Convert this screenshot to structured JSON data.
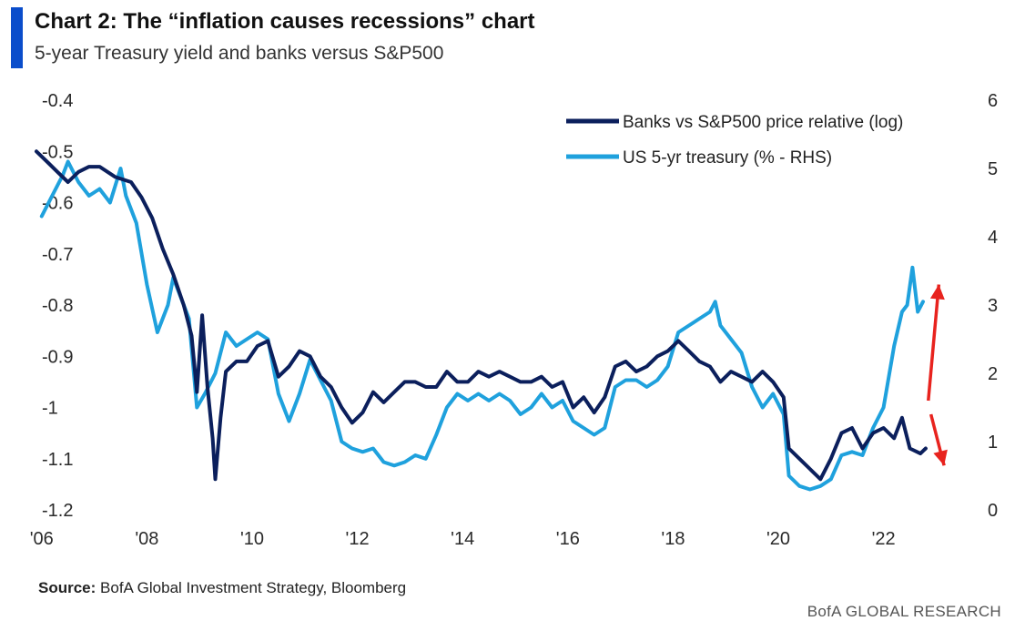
{
  "header": {
    "title": "Chart 2: The “inflation causes recessions” chart",
    "subtitle": "5-year Treasury yield and banks versus S&P500"
  },
  "footer": {
    "source_label": "Source:",
    "source_text": "BofA Global Investment Strategy, Bloomberg",
    "brand": "BofA GLOBAL RESEARCH"
  },
  "colors": {
    "banks": "#0b1f5c",
    "treasury": "#1fa1dd",
    "arrow": "#e8231e",
    "title_bar": "#0a4dcb"
  },
  "chart_data": {
    "type": "line",
    "title": "Chart 2: The “inflation causes recessions” chart",
    "subtitle": "5-year Treasury yield and banks versus S&P500",
    "x_range": [
      2005.9,
      2023.2
    ],
    "x_ticks": [
      {
        "value": 2006,
        "label": "'06"
      },
      {
        "value": 2008,
        "label": "'08"
      },
      {
        "value": 2010,
        "label": "'10"
      },
      {
        "value": 2012,
        "label": "'12"
      },
      {
        "value": 2014,
        "label": "'14"
      },
      {
        "value": 2016,
        "label": "'16"
      },
      {
        "value": 2018,
        "label": "'18"
      },
      {
        "value": 2020,
        "label": "'20"
      },
      {
        "value": 2022,
        "label": "'22"
      }
    ],
    "y_left": {
      "min": -1.2,
      "max": -0.4,
      "ticks": [
        "-0.4",
        "-0.5",
        "-0.6",
        "-0.7",
        "-0.8",
        "-0.9",
        "-1",
        "-1.1",
        "-1.2"
      ]
    },
    "y_right": {
      "min": 0,
      "max": 6,
      "ticks": [
        "6",
        "5",
        "4",
        "3",
        "2",
        "1",
        "0"
      ]
    },
    "grid": false,
    "legend_position": "top-right",
    "series": [
      {
        "name": "Banks vs S&P500 price relative (log)",
        "axis": "left",
        "points": [
          [
            2005.9,
            -0.5
          ],
          [
            2006.1,
            -0.52
          ],
          [
            2006.3,
            -0.54
          ],
          [
            2006.5,
            -0.56
          ],
          [
            2006.7,
            -0.54
          ],
          [
            2006.9,
            -0.53
          ],
          [
            2007.1,
            -0.53
          ],
          [
            2007.4,
            -0.55
          ],
          [
            2007.7,
            -0.56
          ],
          [
            2007.9,
            -0.59
          ],
          [
            2008.1,
            -0.63
          ],
          [
            2008.3,
            -0.69
          ],
          [
            2008.5,
            -0.74
          ],
          [
            2008.7,
            -0.8
          ],
          [
            2008.85,
            -0.86
          ],
          [
            2008.95,
            -0.97
          ],
          [
            2009.05,
            -0.82
          ],
          [
            2009.15,
            -0.96
          ],
          [
            2009.25,
            -1.06
          ],
          [
            2009.3,
            -1.14
          ],
          [
            2009.4,
            -1.02
          ],
          [
            2009.5,
            -0.93
          ],
          [
            2009.7,
            -0.91
          ],
          [
            2009.9,
            -0.91
          ],
          [
            2010.1,
            -0.88
          ],
          [
            2010.3,
            -0.87
          ],
          [
            2010.5,
            -0.94
          ],
          [
            2010.7,
            -0.92
          ],
          [
            2010.9,
            -0.89
          ],
          [
            2011.1,
            -0.9
          ],
          [
            2011.3,
            -0.94
          ],
          [
            2011.5,
            -0.96
          ],
          [
            2011.7,
            -1.0
          ],
          [
            2011.9,
            -1.03
          ],
          [
            2012.1,
            -1.01
          ],
          [
            2012.3,
            -0.97
          ],
          [
            2012.5,
            -0.99
          ],
          [
            2012.7,
            -0.97
          ],
          [
            2012.9,
            -0.95
          ],
          [
            2013.1,
            -0.95
          ],
          [
            2013.3,
            -0.96
          ],
          [
            2013.5,
            -0.96
          ],
          [
            2013.7,
            -0.93
          ],
          [
            2013.9,
            -0.95
          ],
          [
            2014.1,
            -0.95
          ],
          [
            2014.3,
            -0.93
          ],
          [
            2014.5,
            -0.94
          ],
          [
            2014.7,
            -0.93
          ],
          [
            2014.9,
            -0.94
          ],
          [
            2015.1,
            -0.95
          ],
          [
            2015.3,
            -0.95
          ],
          [
            2015.5,
            -0.94
          ],
          [
            2015.7,
            -0.96
          ],
          [
            2015.9,
            -0.95
          ],
          [
            2016.1,
            -1.0
          ],
          [
            2016.3,
            -0.98
          ],
          [
            2016.5,
            -1.01
          ],
          [
            2016.7,
            -0.98
          ],
          [
            2016.9,
            -0.92
          ],
          [
            2017.1,
            -0.91
          ],
          [
            2017.3,
            -0.93
          ],
          [
            2017.5,
            -0.92
          ],
          [
            2017.7,
            -0.9
          ],
          [
            2017.9,
            -0.89
          ],
          [
            2018.1,
            -0.87
          ],
          [
            2018.3,
            -0.89
          ],
          [
            2018.5,
            -0.91
          ],
          [
            2018.7,
            -0.92
          ],
          [
            2018.9,
            -0.95
          ],
          [
            2019.1,
            -0.93
          ],
          [
            2019.3,
            -0.94
          ],
          [
            2019.5,
            -0.95
          ],
          [
            2019.7,
            -0.93
          ],
          [
            2019.9,
            -0.95
          ],
          [
            2020.1,
            -0.98
          ],
          [
            2020.2,
            -1.08
          ],
          [
            2020.4,
            -1.1
          ],
          [
            2020.6,
            -1.12
          ],
          [
            2020.8,
            -1.14
          ],
          [
            2021.0,
            -1.1
          ],
          [
            2021.2,
            -1.05
          ],
          [
            2021.4,
            -1.04
          ],
          [
            2021.6,
            -1.08
          ],
          [
            2021.8,
            -1.05
          ],
          [
            2022.0,
            -1.04
          ],
          [
            2022.2,
            -1.06
          ],
          [
            2022.35,
            -1.02
          ],
          [
            2022.5,
            -1.08
          ],
          [
            2022.7,
            -1.09
          ],
          [
            2022.8,
            -1.08
          ]
        ]
      },
      {
        "name": "US 5-yr treasury (% - RHS)",
        "axis": "right",
        "points": [
          [
            2006.0,
            4.3
          ],
          [
            2006.2,
            4.6
          ],
          [
            2006.4,
            4.9
          ],
          [
            2006.5,
            5.1
          ],
          [
            2006.7,
            4.8
          ],
          [
            2006.9,
            4.6
          ],
          [
            2007.1,
            4.7
          ],
          [
            2007.3,
            4.5
          ],
          [
            2007.5,
            5.0
          ],
          [
            2007.6,
            4.6
          ],
          [
            2007.8,
            4.2
          ],
          [
            2008.0,
            3.3
          ],
          [
            2008.2,
            2.6
          ],
          [
            2008.4,
            3.0
          ],
          [
            2008.5,
            3.4
          ],
          [
            2008.6,
            3.2
          ],
          [
            2008.8,
            2.8
          ],
          [
            2008.95,
            1.5
          ],
          [
            2009.1,
            1.7
          ],
          [
            2009.3,
            2.0
          ],
          [
            2009.5,
            2.6
          ],
          [
            2009.7,
            2.4
          ],
          [
            2009.9,
            2.5
          ],
          [
            2010.1,
            2.6
          ],
          [
            2010.3,
            2.5
          ],
          [
            2010.5,
            1.7
          ],
          [
            2010.7,
            1.3
          ],
          [
            2010.9,
            1.7
          ],
          [
            2011.1,
            2.2
          ],
          [
            2011.3,
            1.9
          ],
          [
            2011.5,
            1.6
          ],
          [
            2011.7,
            1.0
          ],
          [
            2011.9,
            0.9
          ],
          [
            2012.1,
            0.85
          ],
          [
            2012.3,
            0.9
          ],
          [
            2012.5,
            0.7
          ],
          [
            2012.7,
            0.65
          ],
          [
            2012.9,
            0.7
          ],
          [
            2013.1,
            0.8
          ],
          [
            2013.3,
            0.75
          ],
          [
            2013.5,
            1.1
          ],
          [
            2013.7,
            1.5
          ],
          [
            2013.9,
            1.7
          ],
          [
            2014.1,
            1.6
          ],
          [
            2014.3,
            1.7
          ],
          [
            2014.5,
            1.6
          ],
          [
            2014.7,
            1.7
          ],
          [
            2014.9,
            1.6
          ],
          [
            2015.1,
            1.4
          ],
          [
            2015.3,
            1.5
          ],
          [
            2015.5,
            1.7
          ],
          [
            2015.7,
            1.5
          ],
          [
            2015.9,
            1.6
          ],
          [
            2016.1,
            1.3
          ],
          [
            2016.3,
            1.2
          ],
          [
            2016.5,
            1.1
          ],
          [
            2016.7,
            1.2
          ],
          [
            2016.9,
            1.8
          ],
          [
            2017.1,
            1.9
          ],
          [
            2017.3,
            1.9
          ],
          [
            2017.5,
            1.8
          ],
          [
            2017.7,
            1.9
          ],
          [
            2017.9,
            2.1
          ],
          [
            2018.1,
            2.6
          ],
          [
            2018.3,
            2.7
          ],
          [
            2018.5,
            2.8
          ],
          [
            2018.7,
            2.9
          ],
          [
            2018.8,
            3.05
          ],
          [
            2018.9,
            2.7
          ],
          [
            2019.1,
            2.5
          ],
          [
            2019.3,
            2.3
          ],
          [
            2019.5,
            1.8
          ],
          [
            2019.7,
            1.5
          ],
          [
            2019.9,
            1.7
          ],
          [
            2020.1,
            1.4
          ],
          [
            2020.2,
            0.5
          ],
          [
            2020.4,
            0.35
          ],
          [
            2020.6,
            0.3
          ],
          [
            2020.8,
            0.35
          ],
          [
            2021.0,
            0.45
          ],
          [
            2021.2,
            0.8
          ],
          [
            2021.4,
            0.85
          ],
          [
            2021.6,
            0.8
          ],
          [
            2021.8,
            1.2
          ],
          [
            2022.0,
            1.5
          ],
          [
            2022.2,
            2.4
          ],
          [
            2022.35,
            2.9
          ],
          [
            2022.45,
            3.0
          ],
          [
            2022.55,
            3.55
          ],
          [
            2022.65,
            2.9
          ],
          [
            2022.75,
            3.05
          ]
        ]
      }
    ],
    "annotations": [
      {
        "type": "arrow",
        "direction": "up",
        "from": {
          "x": 2022.85,
          "y_right": 1.6
        },
        "to": {
          "x": 2023.05,
          "y_right": 3.3
        }
      },
      {
        "type": "arrow",
        "direction": "down",
        "from": {
          "x": 2022.9,
          "y_right": 1.4
        },
        "to": {
          "x": 2023.15,
          "y_right": 0.65
        }
      }
    ]
  }
}
